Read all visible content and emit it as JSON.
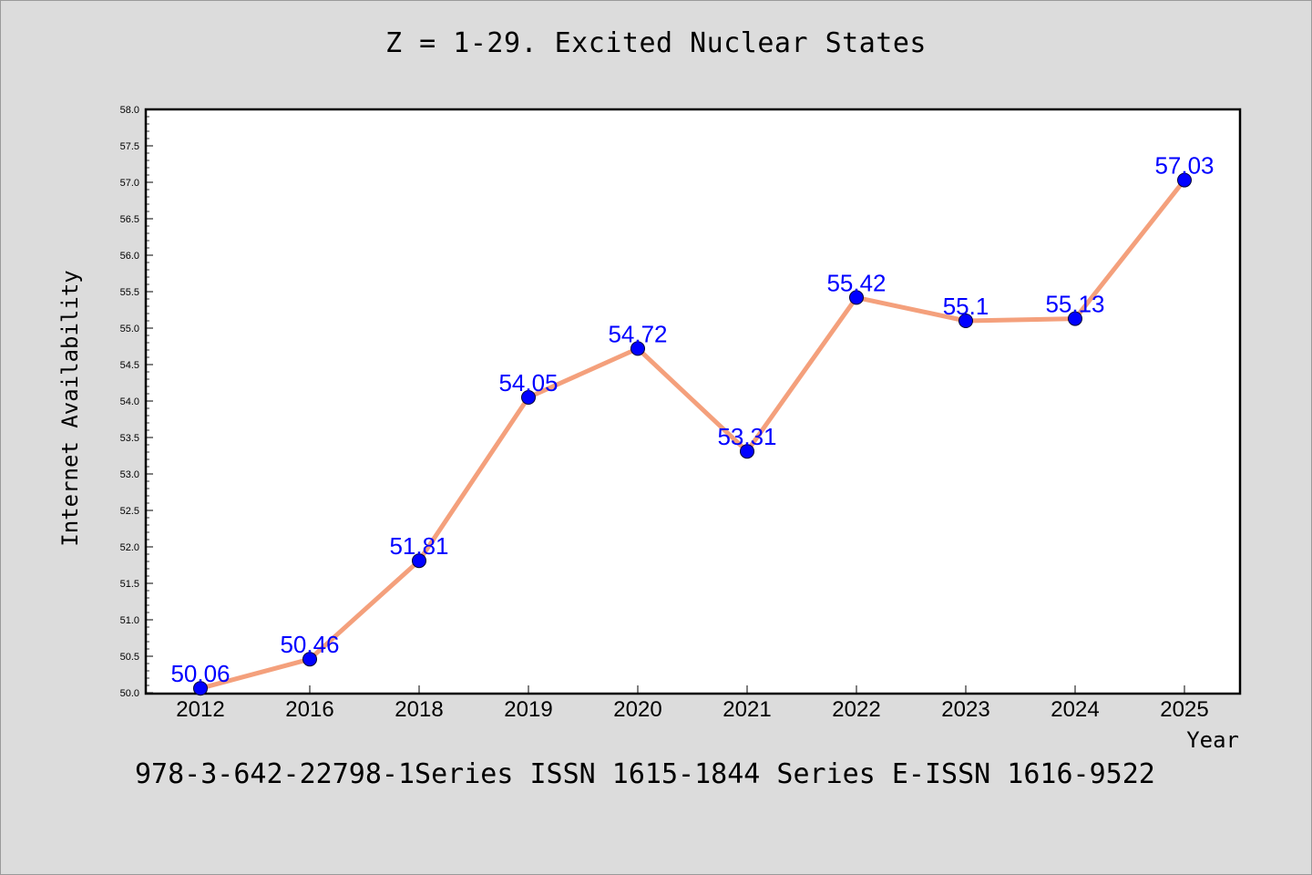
{
  "title": "Z = 1-29. Excited Nuclear States",
  "caption": "978-3-642-22798-1Series ISSN 1615-1844 Series E-ISSN 1616-9522",
  "colors": {
    "background": "#dcdcdc",
    "plot_background": "#ffffff",
    "line": "#f4a07c",
    "marker": "#0000ff",
    "data_label": "#0000ff"
  },
  "chart_data": {
    "type": "line",
    "categories": [
      "2012",
      "2016",
      "2018",
      "2019",
      "2020",
      "2021",
      "2022",
      "2023",
      "2024",
      "2025"
    ],
    "values": [
      50.06,
      50.46,
      51.81,
      54.05,
      54.72,
      53.31,
      55.42,
      55.1,
      55.13,
      57.03
    ],
    "data_labels": [
      "50.06",
      "50.46",
      "51.81",
      "54.05",
      "54.72",
      "53.31",
      "55.42",
      "55.1",
      "55.13",
      "57.03"
    ],
    "xlabel": "Year",
    "ylabel": "Internet Availability",
    "ylim": [
      50.0,
      58.0
    ],
    "yticks": [
      "50.0",
      "50.5",
      "51.0",
      "51.5",
      "52.0",
      "52.5",
      "53.0",
      "53.5",
      "54.0",
      "54.5",
      "55.0",
      "55.5",
      "56.0",
      "56.5",
      "57.0",
      "57.5",
      "58.0"
    ],
    "grid": false,
    "legend": "none"
  }
}
